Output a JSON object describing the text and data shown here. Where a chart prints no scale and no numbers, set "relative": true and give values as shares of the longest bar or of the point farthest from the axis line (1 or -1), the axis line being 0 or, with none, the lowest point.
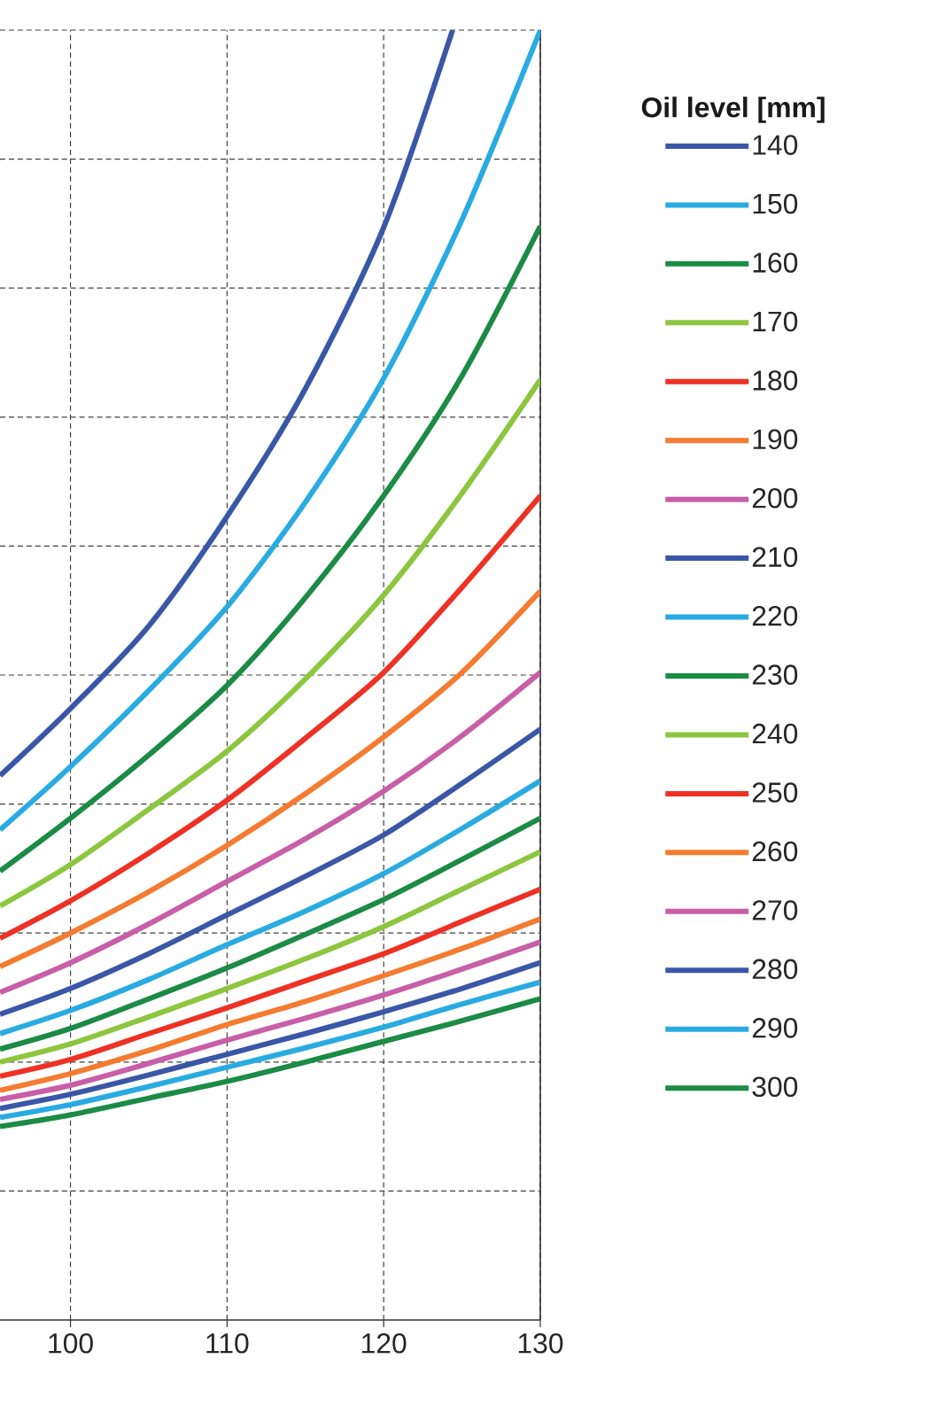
{
  "chart_data": {
    "type": "line",
    "relative": true,
    "legend_title": "Oil level [mm]",
    "x": [
      95.5,
      100,
      105,
      110,
      115,
      120,
      125,
      130
    ],
    "xlim": [
      95.5,
      130
    ],
    "xticks": [
      100,
      110,
      120,
      130
    ],
    "grid": true,
    "legend": "right",
    "line_style": "solid",
    "series": [
      {
        "name": "140",
        "color": "#3a57a7",
        "x": [
          95.5,
          100,
          105,
          110,
          115,
          120,
          124.4
        ],
        "values": [
          0.422,
          0.474,
          0.538,
          0.623,
          0.722,
          0.847,
          1.0
        ]
      },
      {
        "name": "150",
        "color": "#29abe2",
        "values": [
          0.38,
          0.429,
          0.488,
          0.553,
          0.634,
          0.73,
          0.853,
          1.0
        ]
      },
      {
        "name": "160",
        "color": "#1b8b45",
        "values": [
          0.348,
          0.389,
          0.438,
          0.492,
          0.56,
          0.639,
          0.732,
          0.848
        ]
      },
      {
        "name": "170",
        "color": "#8cc63e",
        "values": [
          0.321,
          0.353,
          0.396,
          0.441,
          0.497,
          0.562,
          0.641,
          0.729
        ]
      },
      {
        "name": "180",
        "color": "#ee3124",
        "values": [
          0.296,
          0.325,
          0.362,
          0.403,
          0.451,
          0.502,
          0.568,
          0.639
        ]
      },
      {
        "name": "190",
        "color": "#f47b30",
        "values": [
          0.274,
          0.3,
          0.332,
          0.368,
          0.408,
          0.452,
          0.502,
          0.565
        ]
      },
      {
        "name": "200",
        "color": "#c85ea8",
        "values": [
          0.254,
          0.277,
          0.307,
          0.34,
          0.373,
          0.41,
          0.453,
          0.502
        ]
      },
      {
        "name": "210",
        "color": "#3a57a7",
        "values": [
          0.237,
          0.257,
          0.284,
          0.314,
          0.344,
          0.376,
          0.416,
          0.458
        ]
      },
      {
        "name": "220",
        "color": "#29abe2",
        "values": [
          0.222,
          0.24,
          0.264,
          0.291,
          0.317,
          0.346,
          0.381,
          0.418
        ]
      },
      {
        "name": "230",
        "color": "#1b8b45",
        "values": [
          0.21,
          0.226,
          0.249,
          0.273,
          0.299,
          0.326,
          0.357,
          0.389
        ]
      },
      {
        "name": "240",
        "color": "#8cc63e",
        "values": [
          0.2,
          0.214,
          0.235,
          0.257,
          0.28,
          0.305,
          0.334,
          0.363
        ]
      },
      {
        "name": "250",
        "color": "#ee3124",
        "values": [
          0.189,
          0.202,
          0.222,
          0.242,
          0.263,
          0.284,
          0.309,
          0.334
        ]
      },
      {
        "name": "260",
        "color": "#f47b30",
        "values": [
          0.178,
          0.191,
          0.209,
          0.229,
          0.247,
          0.267,
          0.288,
          0.311
        ]
      },
      {
        "name": "270",
        "color": "#c85ea8",
        "values": [
          0.171,
          0.182,
          0.199,
          0.217,
          0.234,
          0.252,
          0.272,
          0.293
        ]
      },
      {
        "name": "280",
        "color": "#3a57a7",
        "values": [
          0.164,
          0.175,
          0.19,
          0.206,
          0.222,
          0.239,
          0.257,
          0.277
        ]
      },
      {
        "name": "290",
        "color": "#29abe2",
        "values": [
          0.157,
          0.167,
          0.181,
          0.196,
          0.211,
          0.227,
          0.245,
          0.262
        ]
      },
      {
        "name": "300",
        "color": "#1b8b45",
        "values": [
          0.15,
          0.159,
          0.172,
          0.185,
          0.2,
          0.216,
          0.232,
          0.249
        ]
      }
    ]
  }
}
